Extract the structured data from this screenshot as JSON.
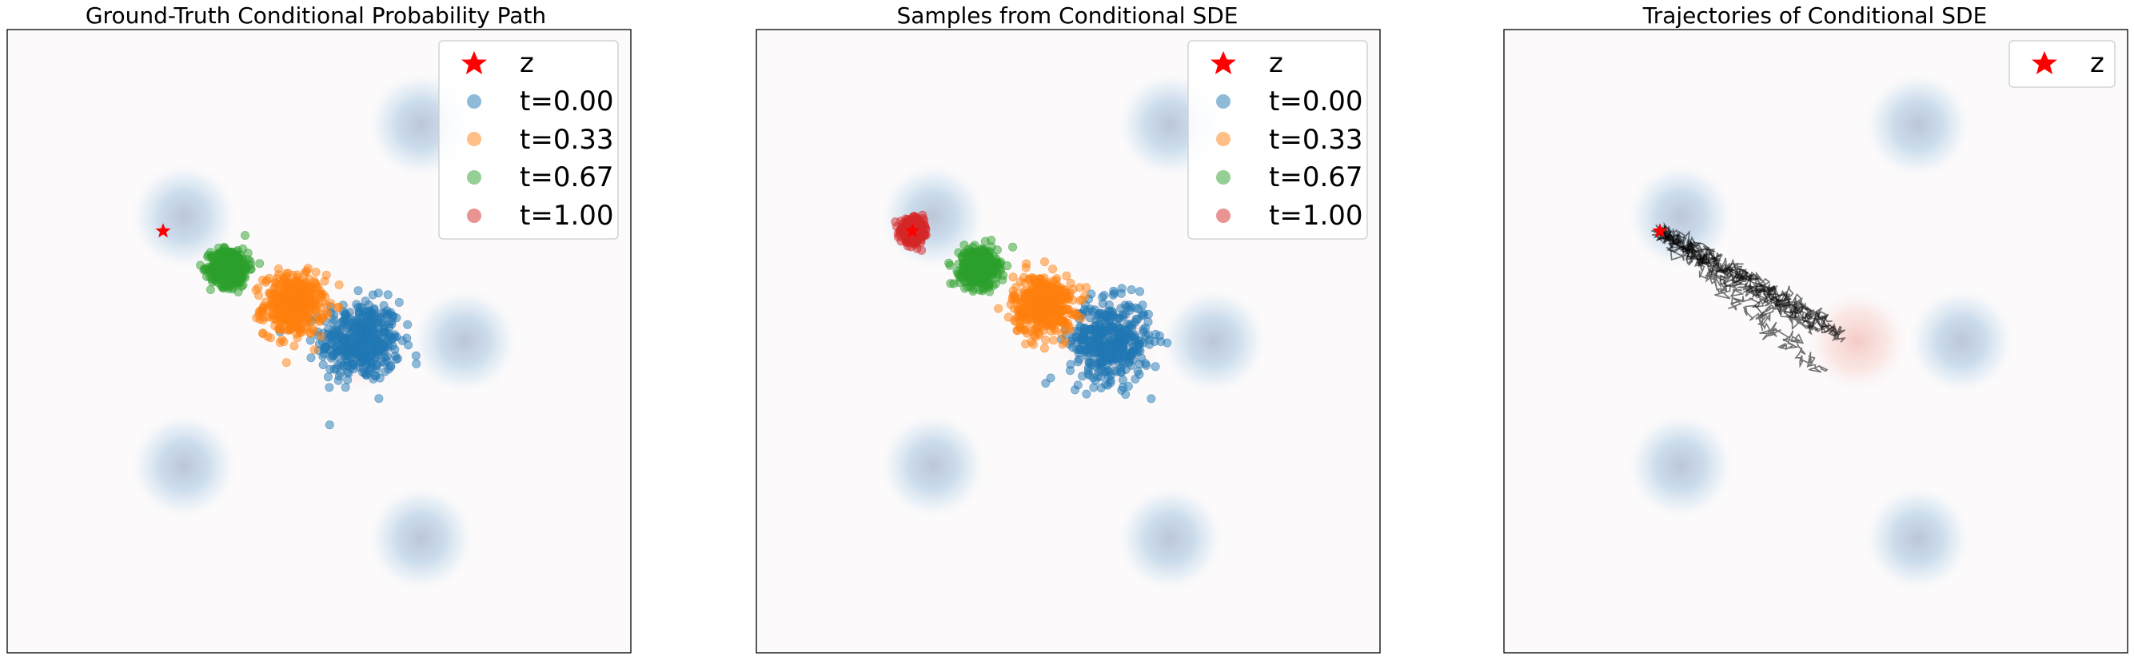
{
  "figure": {
    "panels": [
      {
        "title": "Ground-Truth Conditional Probability Path",
        "legend": [
          "z",
          "t=0.00",
          "t=0.33",
          "t=0.67",
          "t=1.00"
        ]
      },
      {
        "title": "Samples from Conditional SDE",
        "legend": [
          "z",
          "t=0.00",
          "t=0.33",
          "t=0.67",
          "t=1.00"
        ]
      },
      {
        "title": "Trajectories of Conditional SDE",
        "legend": [
          "z"
        ]
      }
    ]
  },
  "chart_data": [
    {
      "type": "scatter",
      "title": "Ground-Truth Conditional Probability Path",
      "xlim": [
        -15,
        15
      ],
      "ylim": [
        -15,
        15
      ],
      "grid": false,
      "legend_position": "top-right",
      "background_density": {
        "mixture_means": [
          [
            -6.5,
            6.0
          ],
          [
            4.9,
            10.4
          ],
          [
            7.0,
            0.0
          ],
          [
            4.9,
            -9.5
          ],
          [
            -6.5,
            -6.0
          ]
        ],
        "target_mean": [
          2.0,
          0.0
        ]
      },
      "z": [
        -7.5,
        5.3
      ],
      "series": [
        {
          "name": "t=0.00",
          "color": "#1f77b4",
          "center": [
            2.0,
            0.0
          ],
          "spread": 1.6
        },
        {
          "name": "t=0.33",
          "color": "#ff7f0e",
          "center": [
            -1.2,
            1.75
          ],
          "spread": 1.2
        },
        {
          "name": "t=0.67",
          "color": "#2ca02c",
          "center": [
            -4.3,
            3.55
          ],
          "spread": 0.75
        },
        {
          "name": "t=1.00",
          "color": "#d62728",
          "center": [
            -7.5,
            5.3
          ],
          "spread": 0.0
        }
      ]
    },
    {
      "type": "scatter",
      "title": "Samples from Conditional SDE",
      "xlim": [
        -15,
        15
      ],
      "ylim": [
        -15,
        15
      ],
      "grid": false,
      "legend_position": "top-right",
      "background_density": {
        "mixture_means": [
          [
            -6.5,
            6.0
          ],
          [
            4.9,
            10.4
          ],
          [
            7.0,
            0.0
          ],
          [
            4.9,
            -9.5
          ],
          [
            -6.5,
            -6.0
          ]
        ],
        "target_mean": [
          2.0,
          0.0
        ]
      },
      "z": [
        -7.5,
        5.3
      ],
      "series": [
        {
          "name": "t=0.00",
          "color": "#1f77b4",
          "center": [
            2.0,
            0.0
          ],
          "spread": 1.6
        },
        {
          "name": "t=0.33",
          "color": "#ff7f0e",
          "center": [
            -1.2,
            1.75
          ],
          "spread": 1.2
        },
        {
          "name": "t=0.67",
          "color": "#2ca02c",
          "center": [
            -4.3,
            3.55
          ],
          "spread": 0.75
        },
        {
          "name": "t=1.00",
          "color": "#d62728",
          "center": [
            -7.5,
            5.3
          ],
          "spread": 0.45
        }
      ]
    },
    {
      "type": "line",
      "title": "Trajectories of Conditional SDE",
      "xlim": [
        -15,
        15
      ],
      "ylim": [
        -15,
        15
      ],
      "grid": false,
      "legend_position": "top-right",
      "background_density": {
        "mixture_means": [
          [
            -6.5,
            6.0
          ],
          [
            4.9,
            10.4
          ],
          [
            7.0,
            0.0
          ],
          [
            4.9,
            -9.5
          ],
          [
            -6.5,
            -6.0
          ]
        ],
        "target_mean": [
          2.0,
          0.0
        ]
      },
      "z": [
        -7.5,
        5.3
      ],
      "trajectory_color": "#000000",
      "trajectory_starts": [
        [
          1.0,
          0.4
        ],
        [
          0.3,
          -1.5
        ],
        [
          1.3,
          0.2
        ],
        [
          0.0,
          0.5
        ],
        [
          0.6,
          0.9
        ]
      ]
    }
  ]
}
